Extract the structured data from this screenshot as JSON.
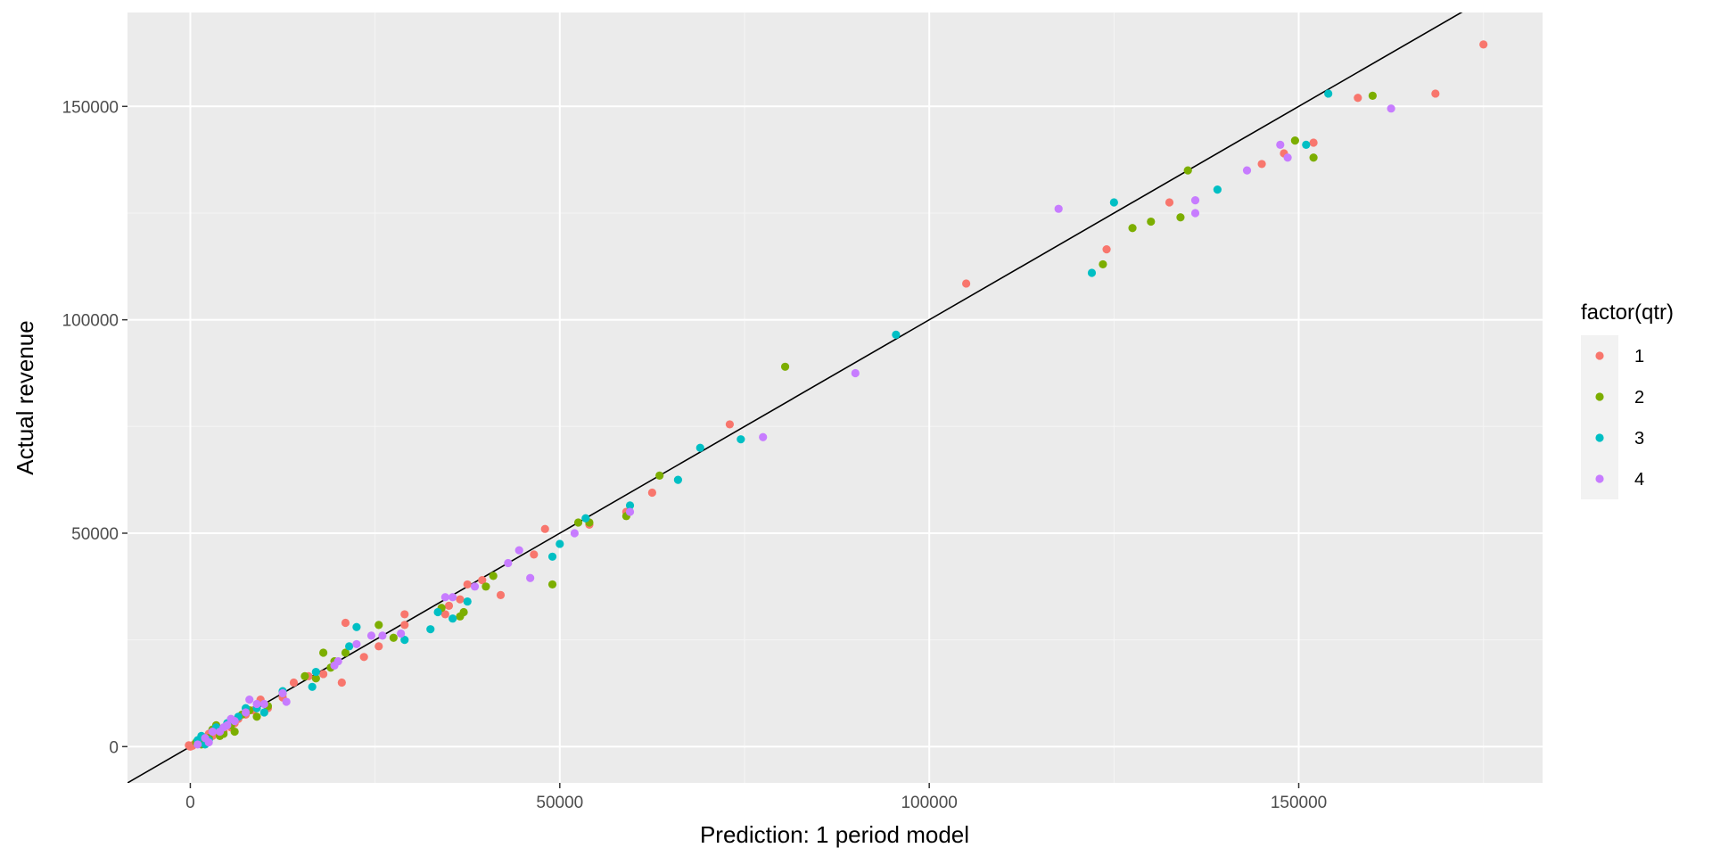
{
  "chart_data": {
    "type": "scatter",
    "title": "",
    "xlabel": "Prediction: 1 period model",
    "ylabel": "Actual revenue",
    "xlim": [
      -8500,
      183000
    ],
    "ylim": [
      -8500,
      172000
    ],
    "x_ticks": [
      0,
      50000,
      100000,
      150000
    ],
    "y_ticks": [
      0,
      50000,
      100000,
      150000
    ],
    "x_tick_labels": [
      "0",
      "50000",
      "100000",
      "150000"
    ],
    "y_tick_labels": [
      "0",
      "50000",
      "100000",
      "150000"
    ],
    "grid": true,
    "reference_line": {
      "slope": 1,
      "intercept": 0,
      "color": "#000000"
    },
    "legend": {
      "title": "factor(qtr)",
      "position": "right",
      "entries": [
        {
          "label": "1",
          "color": "#F8766D"
        },
        {
          "label": "2",
          "color": "#7CAE00"
        },
        {
          "label": "3",
          "color": "#00BFC4"
        },
        {
          "label": "4",
          "color": "#C77CFF"
        }
      ]
    },
    "series": [
      {
        "name": "1",
        "color": "#F8766D",
        "points": [
          [
            175000,
            164500
          ],
          [
            168500,
            153000
          ],
          [
            158000,
            152000
          ],
          [
            152000,
            141500
          ],
          [
            145000,
            136500
          ],
          [
            148000,
            139000
          ],
          [
            132500,
            127500
          ],
          [
            124000,
            116500
          ],
          [
            105000,
            108500
          ],
          [
            73000,
            75500
          ],
          [
            62500,
            59500
          ],
          [
            59000,
            55000
          ],
          [
            54000,
            52000
          ],
          [
            48000,
            51000
          ],
          [
            46500,
            45000
          ],
          [
            42000,
            35500
          ],
          [
            39500,
            39000
          ],
          [
            37500,
            38000
          ],
          [
            36500,
            34500
          ],
          [
            35000,
            33000
          ],
          [
            34500,
            31000
          ],
          [
            29000,
            31000
          ],
          [
            29000,
            28500
          ],
          [
            25500,
            23500
          ],
          [
            23500,
            21000
          ],
          [
            21000,
            29000
          ],
          [
            20500,
            15000
          ],
          [
            18000,
            17000
          ],
          [
            16000,
            16500
          ],
          [
            14000,
            15000
          ],
          [
            12500,
            11500
          ],
          [
            10500,
            9000
          ],
          [
            9500,
            11000
          ],
          [
            8500,
            8500
          ],
          [
            7500,
            7500
          ],
          [
            6500,
            6500
          ],
          [
            6000,
            5500
          ],
          [
            5500,
            4500
          ],
          [
            4500,
            3500
          ],
          [
            4000,
            4000
          ],
          [
            3500,
            3000
          ],
          [
            3000,
            2500
          ],
          [
            2500,
            3000
          ],
          [
            2000,
            2000
          ],
          [
            1500,
            1500
          ],
          [
            1000,
            1000
          ],
          [
            500,
            500
          ],
          [
            300,
            200
          ],
          [
            0,
            0
          ],
          [
            -200,
            300
          ]
        ]
      },
      {
        "name": "2",
        "color": "#7CAE00",
        "points": [
          [
            160000,
            152500
          ],
          [
            152000,
            138000
          ],
          [
            149500,
            142000
          ],
          [
            135000,
            135000
          ],
          [
            134000,
            124000
          ],
          [
            130000,
            123000
          ],
          [
            127500,
            121500
          ],
          [
            123500,
            113000
          ],
          [
            80500,
            89000
          ],
          [
            63500,
            63500
          ],
          [
            59000,
            54000
          ],
          [
            54000,
            52500
          ],
          [
            52500,
            52500
          ],
          [
            49000,
            38000
          ],
          [
            41000,
            40000
          ],
          [
            40000,
            37500
          ],
          [
            37000,
            31500
          ],
          [
            36500,
            30500
          ],
          [
            34000,
            32500
          ],
          [
            27500,
            25500
          ],
          [
            25500,
            28500
          ],
          [
            21000,
            22000
          ],
          [
            19500,
            20000
          ],
          [
            18000,
            22000
          ],
          [
            19000,
            18500
          ],
          [
            17000,
            16000
          ],
          [
            15500,
            16500
          ],
          [
            12500,
            12500
          ],
          [
            10500,
            9500
          ],
          [
            9000,
            7000
          ],
          [
            8000,
            8500
          ],
          [
            7000,
            7500
          ],
          [
            6000,
            3500
          ],
          [
            5500,
            5000
          ],
          [
            4500,
            3000
          ],
          [
            4000,
            2500
          ],
          [
            3500,
            5000
          ],
          [
            3000,
            4000
          ],
          [
            2500,
            2000
          ],
          [
            2000,
            1500
          ],
          [
            1500,
            500
          ],
          [
            800,
            1000
          ]
        ]
      },
      {
        "name": "3",
        "color": "#00BFC4",
        "points": [
          [
            154000,
            153000
          ],
          [
            151000,
            141000
          ],
          [
            139000,
            130500
          ],
          [
            125000,
            127500
          ],
          [
            122000,
            111000
          ],
          [
            95500,
            96500
          ],
          [
            74500,
            72000
          ],
          [
            69000,
            70000
          ],
          [
            66000,
            62500
          ],
          [
            59500,
            56500
          ],
          [
            53500,
            53500
          ],
          [
            50000,
            47500
          ],
          [
            49000,
            44500
          ],
          [
            37500,
            34000
          ],
          [
            35500,
            30000
          ],
          [
            33500,
            31500
          ],
          [
            32500,
            27500
          ],
          [
            29000,
            25000
          ],
          [
            22500,
            28000
          ],
          [
            21500,
            23500
          ],
          [
            16500,
            14000
          ],
          [
            17000,
            17500
          ],
          [
            12500,
            13000
          ],
          [
            10000,
            8000
          ],
          [
            9000,
            9000
          ],
          [
            7500,
            9000
          ],
          [
            6500,
            7000
          ],
          [
            5000,
            5500
          ],
          [
            3500,
            4500
          ],
          [
            2500,
            1500
          ],
          [
            2000,
            500
          ],
          [
            1500,
            2500
          ],
          [
            1000,
            1500
          ]
        ]
      },
      {
        "name": "4",
        "color": "#C77CFF",
        "points": [
          [
            162500,
            149500
          ],
          [
            147500,
            141000
          ],
          [
            148500,
            138000
          ],
          [
            143000,
            135000
          ],
          [
            136000,
            128000
          ],
          [
            136000,
            125000
          ],
          [
            117500,
            126000
          ],
          [
            90000,
            87500
          ],
          [
            77500,
            72500
          ],
          [
            59500,
            55000
          ],
          [
            52000,
            50000
          ],
          [
            46000,
            39500
          ],
          [
            44500,
            46000
          ],
          [
            43000,
            43000
          ],
          [
            38500,
            37500
          ],
          [
            35500,
            35000
          ],
          [
            34500,
            35000
          ],
          [
            28500,
            26500
          ],
          [
            26000,
            26000
          ],
          [
            24500,
            26000
          ],
          [
            22500,
            24000
          ],
          [
            20000,
            20000
          ],
          [
            19500,
            19000
          ],
          [
            13000,
            10500
          ],
          [
            12500,
            12500
          ],
          [
            10000,
            10000
          ],
          [
            9000,
            10000
          ],
          [
            8000,
            11000
          ],
          [
            7500,
            8000
          ],
          [
            6000,
            6000
          ],
          [
            5500,
            6500
          ],
          [
            5000,
            5000
          ],
          [
            4500,
            4500
          ],
          [
            4000,
            3500
          ],
          [
            3000,
            3500
          ],
          [
            2500,
            1000
          ],
          [
            2000,
            2000
          ],
          [
            1000,
            500
          ]
        ]
      }
    ]
  }
}
